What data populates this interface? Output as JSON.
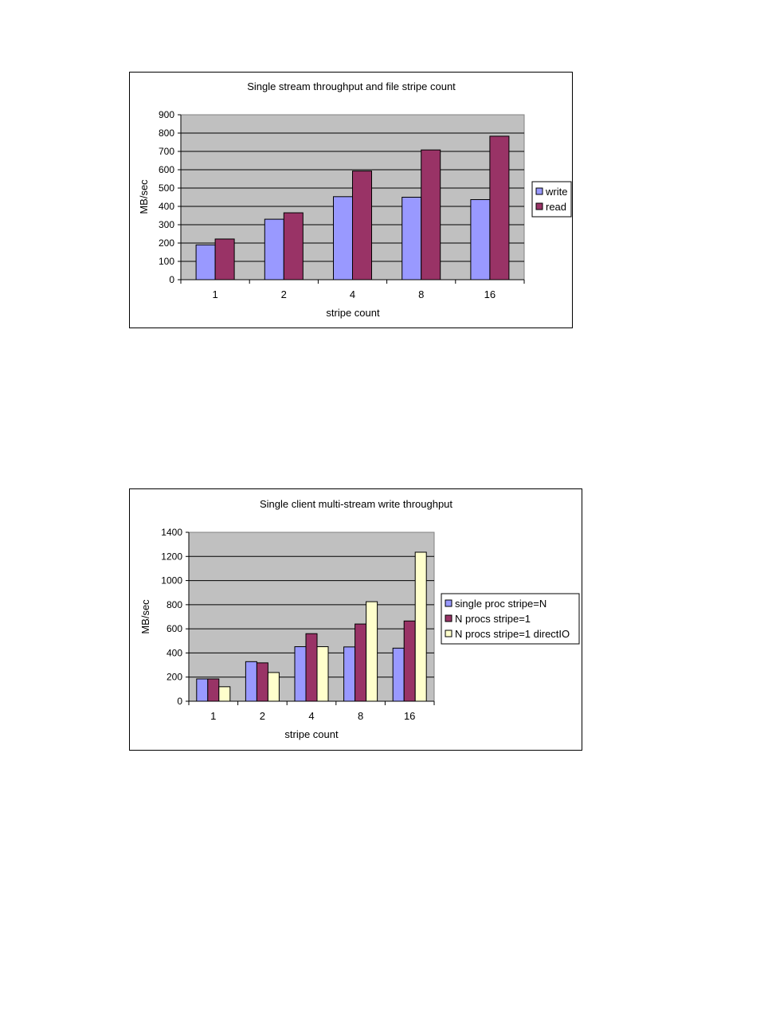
{
  "chart_data": [
    {
      "type": "bar",
      "title": "Single stream throughput and file stripe count",
      "xlabel": "stripe count",
      "ylabel": "MB/sec",
      "categories": [
        "1",
        "2",
        "4",
        "8",
        "16"
      ],
      "ylim": [
        0,
        900
      ],
      "yticks": [
        "0",
        "100",
        "200",
        "300",
        "400",
        "500",
        "600",
        "700",
        "800",
        "900"
      ],
      "grid": true,
      "legend": "right",
      "series": [
        {
          "name": "write",
          "color": "#9999ff",
          "values": [
            190,
            330,
            453,
            450,
            437
          ]
        },
        {
          "name": "read",
          "color": "#993366",
          "values": [
            222,
            365,
            593,
            708,
            783
          ]
        }
      ]
    },
    {
      "type": "bar",
      "title": "Single client multi-stream write throughput",
      "xlabel": "stripe count",
      "ylabel": "MB/sec",
      "categories": [
        "1",
        "2",
        "4",
        "8",
        "16"
      ],
      "ylim": [
        0,
        1400
      ],
      "yticks": [
        "0",
        "200",
        "400",
        "600",
        "800",
        "1000",
        "1200",
        "1400"
      ],
      "grid": true,
      "legend": "right",
      "series": [
        {
          "name": "single proc stripe=N",
          "color": "#9999ff",
          "values": [
            185,
            328,
            452,
            450,
            440
          ]
        },
        {
          "name": "N procs stripe=1",
          "color": "#993366",
          "values": [
            185,
            318,
            560,
            640,
            665
          ]
        },
        {
          "name": "N procs stripe=1 directIO",
          "color": "#ffffcc",
          "values": [
            120,
            238,
            452,
            825,
            1235
          ]
        }
      ]
    }
  ]
}
